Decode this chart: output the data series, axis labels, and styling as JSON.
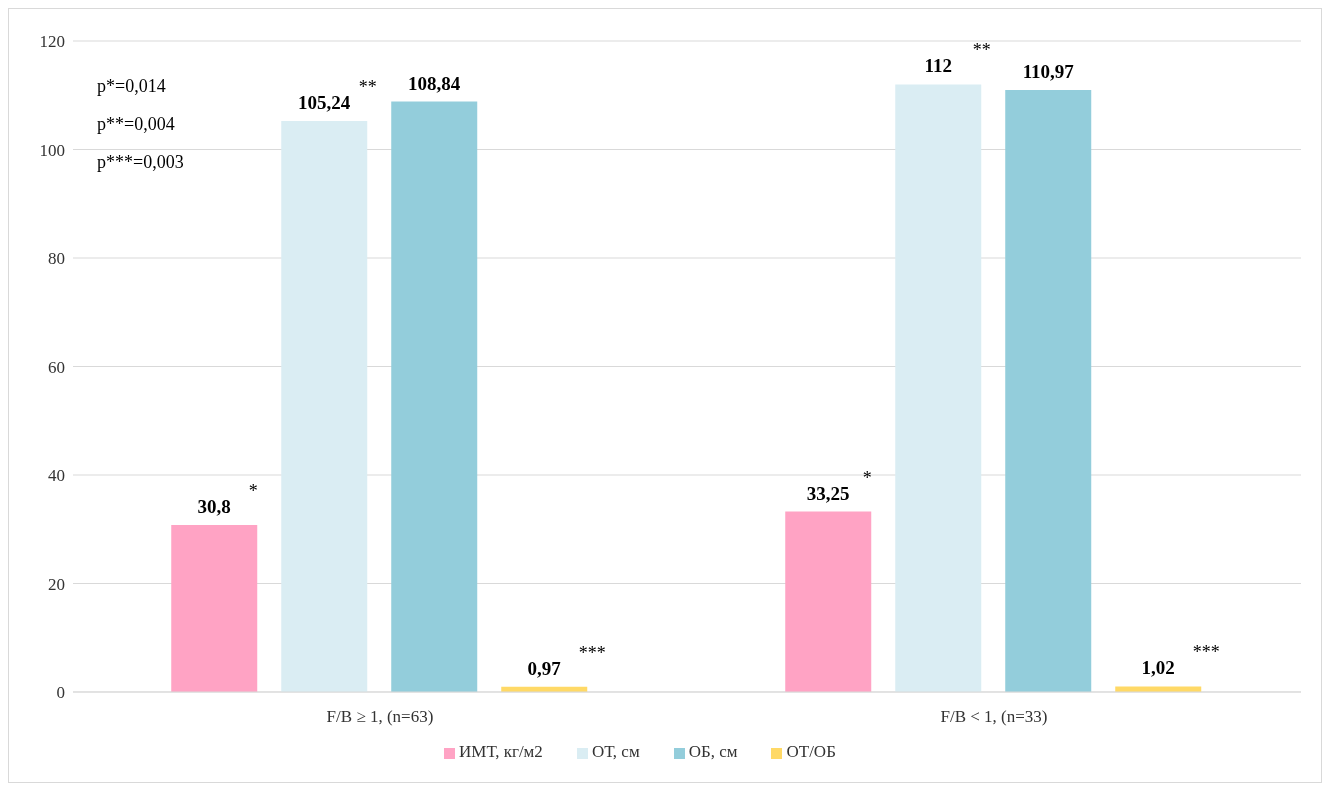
{
  "chart_data": {
    "type": "bar",
    "categories": [
      "F/B ≥ 1, (n=63)",
      "F/B < 1, (n=33)"
    ],
    "series": [
      {
        "name": "ИМТ, кг/м2",
        "color": "#ffa3c4",
        "values": [
          30.8,
          33.25
        ],
        "value_labels": [
          "30,8",
          "33,25"
        ]
      },
      {
        "name": "ОТ, см",
        "color": "#daedf3",
        "values": [
          105.24,
          112
        ],
        "value_labels": [
          "105,24",
          "112"
        ]
      },
      {
        "name": "ОБ, см",
        "color": "#93cddb",
        "values": [
          108.84,
          110.97
        ],
        "value_labels": [
          "108,84",
          "110,97"
        ]
      },
      {
        "name": "ОТ/ОБ",
        "color": "#ffd966",
        "values": [
          0.97,
          1.02
        ],
        "value_labels": [
          "0,97",
          "1,02"
        ]
      }
    ],
    "ylim": [
      0,
      120
    ],
    "yticks": [
      0,
      20,
      40,
      60,
      80,
      100,
      120
    ],
    "grid": "y",
    "legend": "bottom",
    "annotations": [
      "p*=0,014",
      "p**=0,004",
      "p***=0,003",
      "*",
      "**",
      "***",
      "*",
      "**",
      "***"
    ]
  }
}
